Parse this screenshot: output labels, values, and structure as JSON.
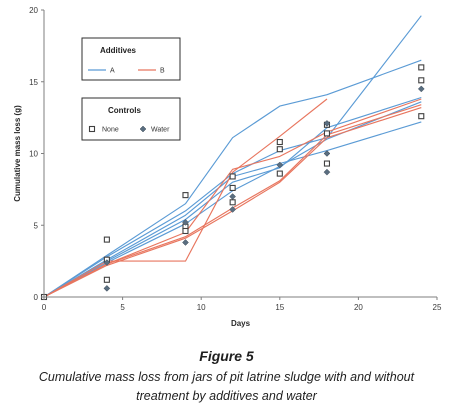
{
  "figure": {
    "title": "Figure 5",
    "caption": "Cumulative mass loss from jars of pit latrine sludge with and without treatment by additives and water"
  },
  "colors": {
    "A": "#5b9bd5",
    "B": "#e8765f",
    "control": "#404040",
    "axis": "#7f7f7f"
  },
  "chart_data": {
    "type": "line",
    "xlabel": "Days",
    "ylabel": "Cumulative mass loss (g)",
    "xlim": [
      0,
      25
    ],
    "ylim": [
      0,
      20
    ],
    "xticks": [
      0,
      5,
      10,
      15,
      20,
      25
    ],
    "yticks": [
      0,
      5,
      10,
      15,
      20
    ],
    "grid": false,
    "legends": [
      {
        "title": "Additives",
        "entries": [
          {
            "label": "A",
            "kind": "line",
            "group": "A"
          },
          {
            "label": "B",
            "kind": "line",
            "group": "B"
          }
        ]
      },
      {
        "title": "Controls",
        "entries": [
          {
            "label": "None",
            "kind": "square"
          },
          {
            "label": "Water",
            "kind": "diamond"
          }
        ]
      }
    ],
    "series": [
      {
        "group": "A",
        "x": [
          0,
          4,
          9,
          12,
          15,
          18,
          24
        ],
        "y": [
          0,
          2.9,
          6.5,
          11.1,
          13.3,
          14.1,
          16.5
        ]
      },
      {
        "group": "A",
        "x": [
          0,
          4,
          9,
          12,
          15,
          18,
          24
        ],
        "y": [
          0,
          2.8,
          6.0,
          8.6,
          10.2,
          11.1,
          19.6
        ]
      },
      {
        "group": "A",
        "x": [
          0,
          4,
          9,
          12,
          15,
          18,
          24
        ],
        "y": [
          0,
          2.6,
          5.7,
          8.4,
          9.3,
          10.2,
          12.2
        ]
      },
      {
        "group": "A",
        "x": [
          0,
          4,
          9,
          12,
          15,
          18,
          24
        ],
        "y": [
          0,
          2.5,
          5.4,
          8.0,
          9.0,
          11.8,
          13.9
        ]
      },
      {
        "group": "A",
        "x": [
          0,
          4,
          9,
          12,
          15,
          18,
          24
        ],
        "y": [
          0,
          2.4,
          5.1,
          7.4,
          9.1,
          11.0,
          13.6
        ]
      },
      {
        "group": "B",
        "x": [
          0,
          4,
          9,
          12,
          15,
          18
        ],
        "y": [
          0,
          2.5,
          2.5,
          8.7,
          11.2,
          13.8
        ]
      },
      {
        "group": "B",
        "x": [
          0,
          4,
          9,
          12,
          15,
          18,
          24
        ],
        "y": [
          0,
          2.3,
          4.5,
          8.9,
          9.8,
          11.5,
          13.8
        ]
      },
      {
        "group": "B",
        "x": [
          0,
          4,
          9,
          12,
          15,
          18,
          24
        ],
        "y": [
          0,
          2.3,
          4.2,
          6.2,
          8.1,
          11.3,
          13.4
        ]
      },
      {
        "group": "B",
        "x": [
          0,
          4,
          9,
          12,
          15,
          18,
          24
        ],
        "y": [
          0,
          2.2,
          4.1,
          6.0,
          8.0,
          11.1,
          13.2
        ]
      }
    ],
    "markers": [
      {
        "kind": "square",
        "x": 0,
        "y": 0
      },
      {
        "kind": "square",
        "x": 4,
        "y": 4.0
      },
      {
        "kind": "square",
        "x": 4,
        "y": 2.6
      },
      {
        "kind": "square",
        "x": 4,
        "y": 1.2
      },
      {
        "kind": "square",
        "x": 9,
        "y": 7.1
      },
      {
        "kind": "square",
        "x": 9,
        "y": 4.9
      },
      {
        "kind": "square",
        "x": 9,
        "y": 4.6
      },
      {
        "kind": "square",
        "x": 12,
        "y": 8.4
      },
      {
        "kind": "square",
        "x": 12,
        "y": 7.6
      },
      {
        "kind": "square",
        "x": 12,
        "y": 6.6
      },
      {
        "kind": "square",
        "x": 15,
        "y": 10.8
      },
      {
        "kind": "square",
        "x": 15,
        "y": 10.3
      },
      {
        "kind": "square",
        "x": 15,
        "y": 8.6
      },
      {
        "kind": "square",
        "x": 18,
        "y": 12.0
      },
      {
        "kind": "square",
        "x": 18,
        "y": 11.4
      },
      {
        "kind": "square",
        "x": 18,
        "y": 9.3
      },
      {
        "kind": "square",
        "x": 24,
        "y": 16.0
      },
      {
        "kind": "square",
        "x": 24,
        "y": 15.1
      },
      {
        "kind": "square",
        "x": 24,
        "y": 12.6
      },
      {
        "kind": "diamond",
        "x": 4,
        "y": 2.4
      },
      {
        "kind": "diamond",
        "x": 4,
        "y": 0.6
      },
      {
        "kind": "diamond",
        "x": 9,
        "y": 5.2
      },
      {
        "kind": "diamond",
        "x": 9,
        "y": 3.8
      },
      {
        "kind": "diamond",
        "x": 12,
        "y": 7.0
      },
      {
        "kind": "diamond",
        "x": 12,
        "y": 6.1
      },
      {
        "kind": "diamond",
        "x": 15,
        "y": 9.2
      },
      {
        "kind": "diamond",
        "x": 18,
        "y": 12.1
      },
      {
        "kind": "diamond",
        "x": 18,
        "y": 10.0
      },
      {
        "kind": "diamond",
        "x": 18,
        "y": 8.7
      },
      {
        "kind": "diamond",
        "x": 24,
        "y": 14.5
      }
    ]
  }
}
